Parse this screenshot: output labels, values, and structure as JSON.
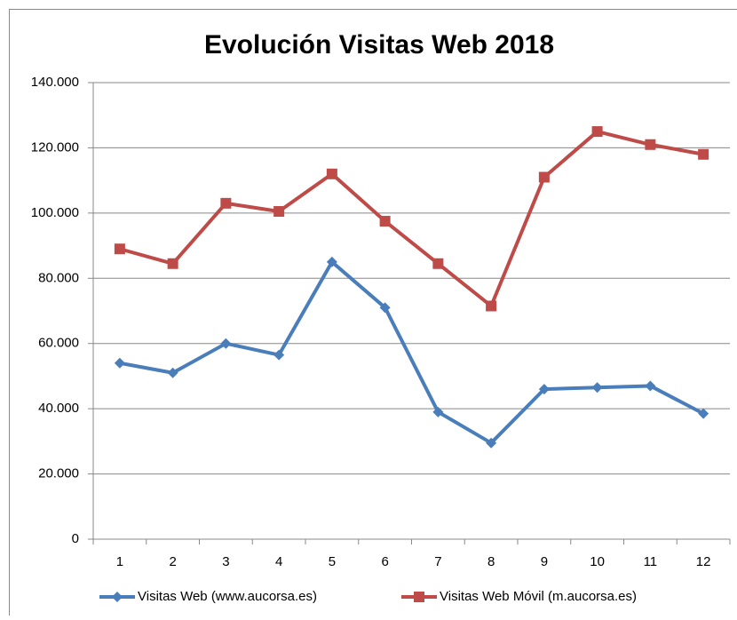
{
  "chart_data": {
    "type": "line",
    "title": "Evolución Visitas Web 2018",
    "categories": [
      "1",
      "2",
      "3",
      "4",
      "5",
      "6",
      "7",
      "8",
      "9",
      "10",
      "11",
      "12"
    ],
    "series": [
      {
        "name": "Visitas Web (www.aucorsa.es)",
        "color": "#4a7ebb",
        "marker": "diamond",
        "values": [
          54000,
          51000,
          60000,
          56500,
          85000,
          71000,
          39000,
          29500,
          46000,
          46500,
          47000,
          38500
        ]
      },
      {
        "name": "Visitas Web Móvil (m.aucorsa.es)",
        "color": "#be4b48",
        "marker": "square",
        "values": [
          89000,
          84500,
          103000,
          100500,
          112000,
          97500,
          84500,
          71500,
          111000,
          125000,
          121000,
          118000
        ]
      }
    ],
    "ylim": [
      0,
      140000
    ],
    "yticks": [
      0,
      {
        "value": 20000,
        "label": "20.000"
      },
      {
        "value": 40000,
        "label": "40.000"
      },
      {
        "value": 60000,
        "label": "60.000"
      },
      {
        "value": 80000,
        "label": "80.000"
      },
      {
        "value": 100000,
        "label": "100.000"
      },
      {
        "value": 120000,
        "label": "120.000"
      },
      {
        "value": 140000,
        "label": "140.000"
      }
    ],
    "grid": true,
    "legend": "bottom"
  }
}
